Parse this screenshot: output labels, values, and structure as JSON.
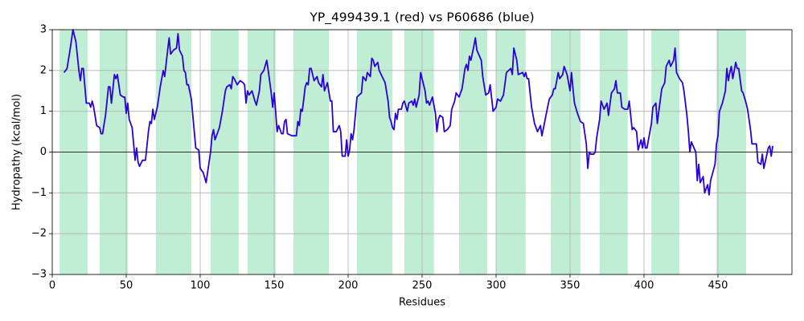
{
  "chart_data": {
    "type": "line",
    "title": "YP_499439.1 (red) vs P60686 (blue)",
    "xlabel": "Residues",
    "ylabel": "Hydropathy (kcal/mol)",
    "color": "#2a00d8",
    "region_color": "#c0eed4",
    "regions": [
      [
        5,
        24
      ],
      [
        32,
        51
      ],
      [
        70,
        94
      ],
      [
        107,
        126
      ],
      [
        132,
        151
      ],
      [
        163,
        187
      ],
      [
        206,
        230
      ],
      [
        238,
        258
      ],
      [
        275,
        294
      ],
      [
        300,
        320
      ],
      [
        337,
        357
      ],
      [
        370,
        389
      ],
      [
        405,
        424
      ],
      [
        449,
        469
      ]
    ],
    "x": [
      8,
      10,
      12,
      14,
      16,
      18,
      19,
      20,
      21,
      23,
      25,
      26,
      27,
      28,
      30,
      32,
      33,
      34,
      36,
      38,
      39,
      40,
      42,
      43,
      44,
      46,
      48,
      49,
      50,
      51,
      52,
      54,
      56,
      57,
      58,
      59,
      61,
      63,
      65,
      66,
      67,
      68,
      69,
      71,
      73,
      75,
      76,
      78,
      79,
      80,
      82,
      84,
      85,
      86,
      88,
      89,
      90,
      91,
      92,
      94,
      96,
      97,
      99,
      100,
      102,
      104,
      106,
      107,
      108,
      109,
      110,
      113,
      115,
      117,
      118,
      120,
      121,
      122,
      123,
      125,
      127,
      129,
      130,
      131,
      132,
      133,
      135,
      137,
      138,
      140,
      141,
      143,
      145,
      146,
      148,
      149,
      150,
      151,
      152,
      153,
      155,
      156,
      157,
      158,
      159,
      162,
      165,
      166,
      167,
      168,
      169,
      171,
      172,
      173,
      174,
      175,
      177,
      179,
      180,
      182,
      183,
      184,
      186,
      188,
      189,
      190,
      192,
      194,
      195,
      196,
      198,
      199,
      200,
      201,
      202,
      203,
      204,
      206,
      209,
      210,
      212,
      213,
      215,
      216,
      217,
      218,
      220,
      221,
      223,
      225,
      227,
      228,
      229,
      230,
      231,
      232,
      233,
      234,
      236,
      237,
      238,
      240,
      241,
      243,
      244,
      245,
      246,
      248,
      249,
      250,
      252,
      253,
      254,
      255,
      257,
      259,
      260,
      261,
      262,
      264,
      265,
      267,
      269,
      270,
      272,
      273,
      275,
      277,
      279,
      280,
      281,
      282,
      283,
      285,
      286,
      287,
      290,
      291,
      293,
      295,
      296,
      298,
      300,
      301,
      303,
      305,
      307,
      310,
      311,
      312,
      314,
      315,
      318,
      319,
      320,
      321,
      322,
      324,
      326,
      328,
      330,
      331,
      334,
      336,
      338,
      339,
      340,
      342,
      343,
      345,
      346,
      348,
      350,
      351,
      352,
      353,
      355,
      357,
      359,
      361,
      362,
      363,
      364,
      366,
      367,
      368,
      370,
      371,
      372,
      373,
      375,
      376,
      378,
      380,
      381,
      382,
      384,
      385,
      387,
      389,
      390,
      392,
      393,
      395,
      396,
      398,
      399,
      400,
      401,
      402,
      403,
      405,
      406,
      408,
      409,
      410,
      412,
      414,
      415,
      417,
      418,
      420,
      421,
      422,
      424,
      426,
      427,
      429,
      430,
      431,
      432,
      435,
      436,
      437,
      438,
      440,
      441,
      443,
      444,
      445,
      448,
      449,
      450,
      451,
      453,
      455,
      456,
      457,
      458,
      459,
      460,
      462,
      463,
      464,
      466,
      467,
      469,
      470,
      472,
      473,
      476,
      477,
      479,
      480,
      481,
      484,
      485,
      486,
      487
    ],
    "values": [
      1.95,
      2.05,
      2.5,
      3.0,
      2.7,
      2.0,
      1.75,
      2.05,
      2.05,
      1.2,
      1.2,
      1.1,
      1.25,
      1.1,
      0.65,
      0.6,
      0.45,
      0.45,
      0.9,
      1.6,
      1.6,
      1.2,
      1.9,
      1.8,
      1.9,
      1.4,
      1.35,
      1.35,
      0.95,
      1.2,
      0.8,
      0.6,
      -0.2,
      0.1,
      -0.25,
      -0.35,
      -0.2,
      -0.2,
      0.5,
      0.75,
      0.7,
      1.05,
      0.8,
      1.1,
      1.6,
      2.0,
      1.85,
      2.5,
      2.8,
      2.4,
      2.5,
      2.55,
      2.9,
      2.5,
      2.35,
      2.0,
      1.95,
      1.65,
      1.65,
      1.3,
      0.5,
      0.1,
      0.05,
      -0.4,
      -0.5,
      -0.75,
      -0.25,
      0.0,
      0.4,
      0.55,
      0.3,
      0.6,
      1.0,
      1.5,
      1.6,
      1.65,
      1.55,
      1.85,
      1.8,
      1.65,
      1.75,
      1.7,
      1.65,
      1.2,
      1.5,
      1.4,
      1.5,
      1.25,
      1.15,
      1.5,
      1.9,
      2.0,
      2.25,
      2.0,
      1.45,
      1.1,
      1.45,
      1.0,
      0.5,
      0.65,
      0.45,
      0.45,
      0.75,
      0.8,
      0.45,
      0.4,
      0.4,
      0.75,
      0.65,
      1.05,
      1.0,
      1.6,
      1.7,
      1.65,
      2.05,
      2.05,
      1.75,
      1.85,
      1.7,
      1.6,
      1.9,
      1.5,
      1.7,
      1.25,
      1.25,
      0.5,
      0.5,
      0.65,
      0.5,
      -0.1,
      -0.1,
      0.3,
      -0.1,
      0.05,
      0.45,
      0.3,
      0.55,
      1.35,
      1.45,
      1.85,
      1.75,
      1.95,
      1.85,
      2.3,
      2.25,
      2.1,
      2.2,
      2.0,
      1.85,
      1.7,
      1.25,
      0.85,
      0.75,
      0.6,
      0.55,
      0.95,
      0.8,
      1.05,
      1.05,
      1.2,
      1.25,
      1.0,
      1.2,
      1.25,
      1.15,
      1.3,
      1.1,
      1.4,
      1.95,
      1.8,
      1.5,
      1.2,
      1.25,
      1.15,
      1.35,
      0.95,
      0.5,
      0.8,
      0.9,
      0.85,
      0.5,
      0.55,
      0.65,
      1.05,
      1.25,
      1.45,
      1.35,
      1.55,
      2.05,
      2.15,
      2.0,
      2.35,
      2.25,
      2.6,
      2.8,
      2.5,
      2.25,
      1.85,
      1.4,
      1.45,
      1.65,
      1.0,
      1.1,
      1.3,
      1.25,
      1.4,
      1.95,
      2.05,
      1.9,
      2.55,
      2.25,
      1.9,
      1.95,
      1.85,
      1.95,
      1.8,
      1.8,
      1.1,
      0.7,
      0.5,
      0.65,
      0.4,
      0.95,
      1.3,
      1.4,
      1.55,
      1.55,
      1.95,
      1.8,
      1.9,
      2.1,
      1.9,
      1.5,
      1.95,
      1.55,
      1.2,
      0.95,
      0.75,
      0.7,
      0.2,
      -0.4,
      0.0,
      -0.05,
      -0.05,
      0.0,
      0.35,
      0.8,
      1.25,
      1.15,
      1.05,
      1.2,
      0.9,
      1.45,
      1.55,
      1.75,
      1.45,
      1.45,
      1.1,
      1.05,
      1.05,
      1.25,
      0.55,
      0.6,
      0.5,
      0.05,
      0.3,
      0.1,
      0.35,
      0.1,
      0.1,
      0.3,
      0.7,
      1.1,
      1.2,
      0.7,
      1.0,
      1.55,
      1.7,
      2.1,
      2.25,
      2.1,
      2.25,
      2.55,
      1.95,
      1.8,
      1.7,
      1.5,
      0.9,
      0.5,
      0.0,
      0.25,
      0.0,
      -0.7,
      -0.3,
      -0.75,
      -0.6,
      -1.0,
      -0.8,
      -1.05,
      -0.7,
      -0.3,
      0.2,
      0.4,
      1.0,
      1.2,
      1.5,
      2.05,
      1.75,
      1.95,
      2.1,
      1.8,
      2.2,
      2.05,
      2.05,
      1.5,
      1.45,
      1.2,
      1.05,
      0.55,
      0.2,
      0.2,
      -0.25,
      -0.3,
      -0.05,
      -0.4,
      0.1,
      0.15,
      -0.1,
      0.15
    ],
    "xlim": [
      0,
      500
    ],
    "ylim": [
      -3,
      3
    ],
    "xticks": [
      0,
      50,
      100,
      150,
      200,
      250,
      300,
      350,
      400,
      450
    ],
    "yticks": [
      {
        "value": -3,
        "label": "−3"
      },
      {
        "value": -2,
        "label": "−2"
      },
      {
        "value": -1,
        "label": "−1"
      },
      0,
      1,
      2,
      3
    ],
    "grid": true,
    "zero_line": true
  }
}
